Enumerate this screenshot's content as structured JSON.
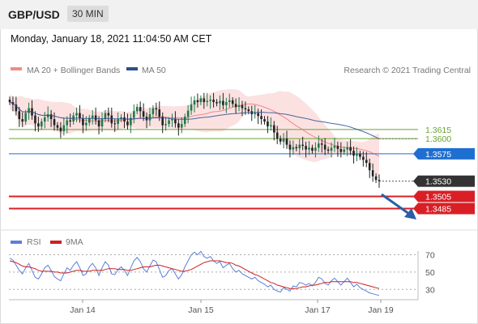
{
  "header": {
    "symbol": "GBP/USD",
    "timeframe": "30 MIN"
  },
  "timestamp": "Monday, January 18, 2021 11:04:50 AM CET",
  "legend": {
    "bollinger": "MA 20 + Bollinger Bands",
    "ma50": "MA 50",
    "copyright": "Research © 2021 Trading Central",
    "rsi": "RSI",
    "rsi_ma": "9MA"
  },
  "colors": {
    "bollinger": "#f08a8a",
    "bollinger_fill": "#fcdcdc",
    "ma50": "#2a4f8f",
    "candle_up": "#1f7a4a",
    "candle_down": "#222222",
    "support": "#d81f26",
    "resistance": "#8bc34a",
    "pivot": "#1f6fd1",
    "arrow": "#2a5ea8",
    "rsi": "#5b7fd9",
    "rsi_ma": "#cc2020"
  },
  "chart_data": [
    {
      "type": "candlestick",
      "title": "GBP/USD 30 MIN",
      "x_ticks": [
        "Jan 14",
        "Jan 15",
        "Jan 17",
        "Jan 19"
      ],
      "ylim": [
        1.3455,
        1.37
      ],
      "levels": [
        {
          "value": 1.3615,
          "label": "1.3615",
          "kind": "resistance",
          "color": "#6aa334"
        },
        {
          "value": 1.36,
          "label": "1.3600",
          "kind": "resistance",
          "color": "#6aa334"
        },
        {
          "value": 1.3575,
          "label": "1.3575",
          "kind": "pivot",
          "color": "#1f6fd1"
        },
        {
          "value": 1.3505,
          "label": "1.3505",
          "kind": "support",
          "color": "#d81f26"
        },
        {
          "value": 1.3485,
          "label": "1.3485",
          "kind": "support",
          "color": "#d81f26"
        }
      ],
      "last_price": {
        "value": 1.353,
        "label": "1.3530"
      },
      "close_series": [
        1.366,
        1.3656,
        1.3645,
        1.3632,
        1.3628,
        1.3642,
        1.365,
        1.3638,
        1.3625,
        1.362,
        1.3628,
        1.3635,
        1.364,
        1.3632,
        1.3622,
        1.3618,
        1.3612,
        1.3622,
        1.363,
        1.3628,
        1.3638,
        1.3642,
        1.3633,
        1.3622,
        1.3626,
        1.3634,
        1.3638,
        1.363,
        1.362,
        1.3632,
        1.3642,
        1.3638,
        1.3625,
        1.3624,
        1.3632,
        1.3635,
        1.3628,
        1.3622,
        1.3634,
        1.3645,
        1.3652,
        1.3645,
        1.3636,
        1.363,
        1.364,
        1.365,
        1.3648,
        1.3636,
        1.3622,
        1.3624,
        1.363,
        1.3632,
        1.3625,
        1.3618,
        1.3624,
        1.3636,
        1.3646,
        1.3656,
        1.3663,
        1.366,
        1.3666,
        1.366,
        1.3662,
        1.3664,
        1.366,
        1.3658,
        1.3662,
        1.3655,
        1.366,
        1.3663,
        1.3657,
        1.3652,
        1.3655,
        1.365,
        1.3648,
        1.3645,
        1.364,
        1.3642,
        1.3637,
        1.3632,
        1.3628,
        1.362,
        1.3622,
        1.361,
        1.36,
        1.3595,
        1.36,
        1.359,
        1.3582,
        1.3586,
        1.3584,
        1.359,
        1.3588,
        1.3582,
        1.3585,
        1.358,
        1.3585,
        1.3592,
        1.359,
        1.3582,
        1.358,
        1.3585,
        1.3588,
        1.3583,
        1.3578,
        1.3582,
        1.3586,
        1.358,
        1.3572,
        1.3575,
        1.357,
        1.3565,
        1.356,
        1.3548,
        1.3538,
        1.3532,
        1.353
      ]
    },
    {
      "type": "line",
      "title": "RSI",
      "y_ticks": [
        70,
        50,
        30
      ],
      "ylim": [
        20,
        78
      ],
      "series": [
        {
          "name": "RSI",
          "values": [
            66,
            64,
            58,
            52,
            48,
            55,
            60,
            52,
            44,
            42,
            48,
            55,
            58,
            52,
            45,
            42,
            40,
            48,
            55,
            52,
            58,
            62,
            55,
            46,
            48,
            56,
            60,
            55,
            46,
            55,
            62,
            58,
            48,
            47,
            53,
            56,
            52,
            46,
            55,
            63,
            67,
            62,
            54,
            50,
            57,
            64,
            62,
            53,
            44,
            46,
            52,
            54,
            48,
            42,
            47,
            56,
            63,
            70,
            73,
            70,
            74,
            68,
            66,
            68,
            63,
            60,
            62,
            55,
            58,
            60,
            54,
            50,
            52,
            48,
            46,
            44,
            42,
            44,
            40,
            38,
            36,
            33,
            35,
            30,
            28,
            27,
            32,
            30,
            28,
            34,
            33,
            38,
            37,
            35,
            37,
            34,
            38,
            44,
            42,
            37,
            35,
            40,
            43,
            39,
            35,
            39,
            43,
            38,
            33,
            36,
            32,
            30,
            28,
            26,
            25,
            24,
            23
          ]
        },
        {
          "name": "9MA",
          "values": [
            63,
            62,
            61,
            59,
            57,
            56,
            56,
            55,
            54,
            52,
            51,
            51,
            51,
            51,
            50,
            50,
            49,
            49,
            49,
            50,
            51,
            52,
            52,
            51,
            51,
            51,
            52,
            52,
            52,
            52,
            53,
            54,
            54,
            54,
            53,
            53,
            53,
            52,
            52,
            53,
            54,
            55,
            56,
            56,
            56,
            57,
            58,
            58,
            57,
            56,
            55,
            54,
            53,
            52,
            51,
            51,
            52,
            53,
            55,
            57,
            59,
            61,
            62,
            63,
            63,
            63,
            63,
            62,
            61,
            61,
            60,
            58,
            57,
            55,
            53,
            51,
            49,
            47,
            46,
            44,
            42,
            40,
            38,
            37,
            35,
            34,
            33,
            32,
            31,
            31,
            31,
            32,
            33,
            33,
            34,
            35,
            35,
            36,
            37,
            38,
            38,
            39,
            39,
            39,
            39,
            39,
            39,
            39,
            38,
            38,
            37,
            36,
            35,
            34,
            33,
            32,
            31
          ]
        }
      ]
    }
  ]
}
